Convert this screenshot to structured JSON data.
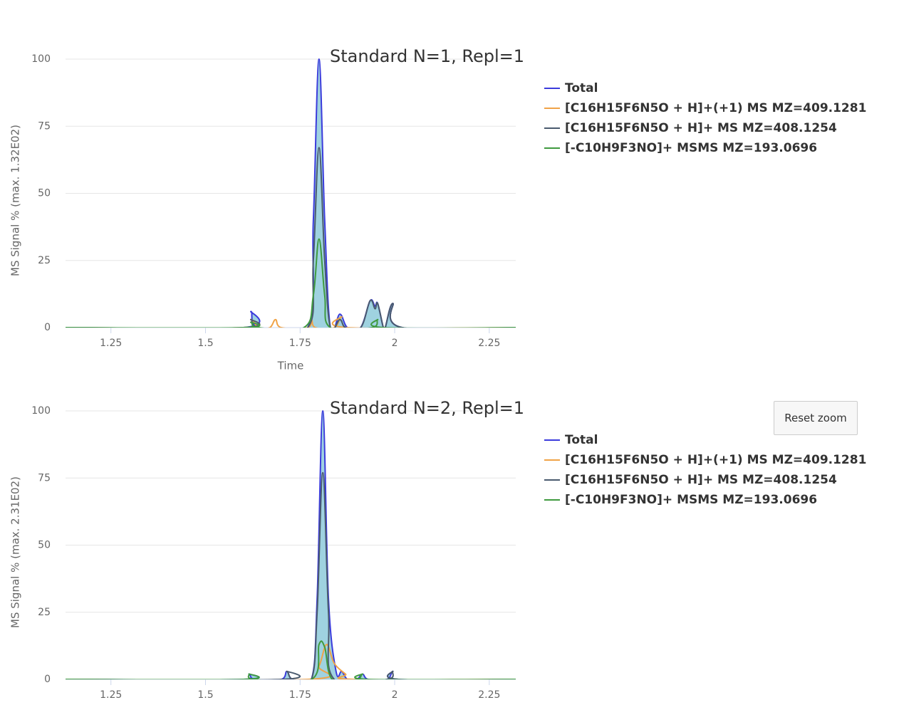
{
  "reset_zoom_button": "Reset zoom",
  "chart_data": [
    {
      "type": "line",
      "title": "Standard N=1, Repl=1",
      "y_label": "MS Signal % (max. 1.32E02)",
      "x_label": "Time",
      "xlim": [
        1.13,
        2.32
      ],
      "xticks": [
        1.25,
        1.5,
        1.75,
        2,
        2.25
      ],
      "ylim": [
        0,
        100
      ],
      "yticks": [
        0,
        25,
        50,
        75,
        100
      ],
      "grid": true,
      "legend": "right",
      "series": [
        {
          "name": "Total",
          "color": "#3b3bdc",
          "fill_color": "#9fd2e0",
          "x": [
            1.13,
            1.6,
            1.62,
            1.64,
            1.77,
            1.785,
            1.8,
            1.815,
            1.83,
            1.855,
            1.875,
            1.91,
            1.935,
            1.948,
            1.955,
            1.97,
            1.975,
            1.995,
            2.02,
            2.32
          ],
          "values": [
            0,
            0,
            6,
            0,
            0,
            40,
            100,
            40,
            0,
            5,
            0,
            0,
            10,
            8,
            9,
            0,
            0,
            9,
            0,
            0
          ]
        },
        {
          "name": "[C16H15F6N5O + H]+(+1) MS MZ=409.1281",
          "color": "#f0a347",
          "x": [
            1.13,
            1.6,
            1.62,
            1.64,
            1.67,
            1.685,
            1.7,
            1.77,
            1.78,
            1.79,
            1.84,
            1.86,
            1.875,
            2.32
          ],
          "values": [
            0,
            0,
            3,
            0,
            0,
            3,
            0,
            0,
            3,
            0,
            0,
            4,
            0,
            0
          ]
        },
        {
          "name": "[C16H15F6N5O + H]+ MS MZ=408.1254",
          "color": "#4a5a6e",
          "x": [
            1.13,
            1.6,
            1.62,
            1.64,
            1.77,
            1.785,
            1.8,
            1.815,
            1.83,
            1.855,
            1.87,
            1.91,
            1.935,
            1.948,
            1.955,
            1.97,
            1.975,
            1.995,
            2.02,
            2.32
          ],
          "values": [
            0,
            0,
            3,
            0,
            0,
            25,
            67,
            25,
            0,
            3,
            0,
            0,
            10,
            7,
            9,
            0,
            0,
            9,
            0,
            0
          ]
        },
        {
          "name": "[-C10H9F3NO]+ MSMS MZ=193.0696",
          "color": "#3f9a3f",
          "x": [
            1.13,
            1.6,
            1.62,
            1.64,
            1.76,
            1.785,
            1.8,
            1.815,
            1.83,
            1.94,
            1.955,
            1.97,
            2.32
          ],
          "values": [
            0,
            0,
            2,
            0,
            0,
            12,
            33,
            12,
            0,
            0,
            3,
            0,
            0
          ]
        }
      ]
    },
    {
      "type": "line",
      "title": "Standard N=2, Repl=1",
      "y_label": "MS Signal % (max. 2.31E02)",
      "xlim": [
        1.13,
        2.32
      ],
      "xticks": [
        1.25,
        1.5,
        1.75,
        2,
        2.25
      ],
      "ylim": [
        0,
        100
      ],
      "yticks": [
        0,
        25,
        50,
        75,
        100
      ],
      "grid": true,
      "legend": "right",
      "series": [
        {
          "name": "Total",
          "color": "#3b3bdc",
          "fill_color": "#9fd2e0",
          "x": [
            1.13,
            1.6,
            1.615,
            1.63,
            1.7,
            1.715,
            1.73,
            1.78,
            1.795,
            1.81,
            1.825,
            1.845,
            1.86,
            1.875,
            1.9,
            1.915,
            1.93,
            1.98,
            1.995,
            2.01,
            2.32
          ],
          "values": [
            0,
            0,
            2,
            0,
            0,
            3,
            0,
            0,
            30,
            100,
            30,
            3,
            3,
            0,
            0,
            2,
            0,
            0,
            3,
            0,
            0
          ]
        },
        {
          "name": "[C16H15F6N5O + H]+(+1) MS MZ=409.1281",
          "color": "#f0a347",
          "x": [
            1.13,
            1.77,
            1.8,
            1.82,
            1.84,
            1.87,
            1.89,
            2.32
          ],
          "values": [
            0,
            0,
            5,
            13,
            6,
            2,
            0,
            0
          ]
        },
        {
          "name": "[C16H15F6N5O + H]+ MS MZ=408.1254",
          "color": "#4a5a6e",
          "x": [
            1.13,
            1.7,
            1.715,
            1.73,
            1.78,
            1.795,
            1.81,
            1.825,
            1.84,
            1.98,
            1.995,
            2.01,
            2.32
          ],
          "values": [
            0,
            0,
            3,
            0,
            0,
            25,
            77,
            25,
            0,
            0,
            3,
            0,
            0
          ]
        },
        {
          "name": "[-C10H9F3NO]+ MSMS MZ=193.0696",
          "color": "#3f9a3f",
          "x": [
            1.13,
            1.6,
            1.615,
            1.63,
            1.78,
            1.8,
            1.815,
            1.835,
            1.9,
            1.915,
            1.93,
            2.32
          ],
          "values": [
            0,
            0,
            2,
            0,
            0,
            13,
            12,
            0,
            0,
            2,
            0,
            0
          ]
        }
      ]
    }
  ]
}
